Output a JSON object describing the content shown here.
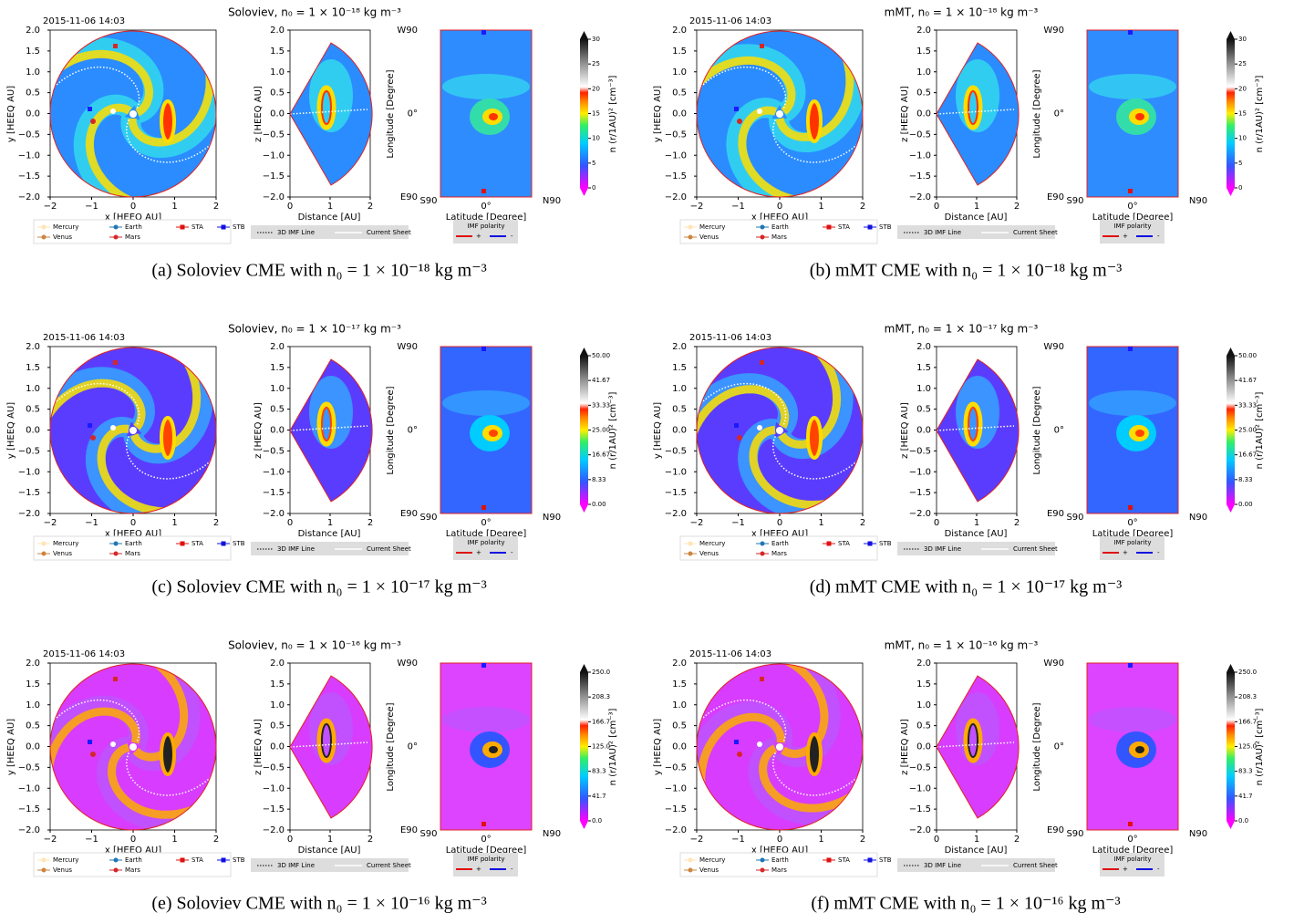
{
  "common": {
    "date": "2015-11-06 14:03",
    "xy_xticks": [
      "−2",
      "−1",
      "0",
      "1",
      "2"
    ],
    "xy_yticks": [
      "2.0",
      "1.5",
      "1.0",
      "0.5",
      "0.0",
      "−0.5",
      "−1.0",
      "−1.5",
      "−2.0"
    ],
    "xy_xlabel": "x [HEEQ AU]",
    "xy_ylabel": "y [HEEQ AU]",
    "xz_xticks": [
      "0",
      "1",
      "2"
    ],
    "xz_xlabel": "Distance [AU]",
    "xz_ylabel": "z [HEEQ AU]",
    "map_lon_ticks": [
      "W90",
      "0°",
      "E90"
    ],
    "map_lat_ticks": [
      "S90",
      "0°",
      "N90"
    ],
    "map_xlabel": "Latitude [Degree]",
    "map_ylabel": "Longitude [Degree]",
    "colorbar_label": "n (r/1AU)² [cm⁻³]",
    "bodies": [
      "Mercury",
      "Venus",
      "Earth",
      "Mars",
      "STA",
      "STB"
    ],
    "lines_legend": [
      "3D IMF Line",
      "Current Sheet"
    ],
    "polarity_title": "IMF polarity",
    "polarity_labels": [
      "+",
      "-"
    ]
  },
  "panels": [
    {
      "title": "Soloviev,  n₀ = 1 × 10⁻¹⁸ kg m⁻³",
      "caption": "(a) Soloviev CME with n₀ = 1 × 10⁻¹⁸ kg m⁻³",
      "colorbar_ticks": [
        "0",
        "5",
        "10",
        "15",
        "20",
        "25",
        "30"
      ]
    },
    {
      "title": "mMT,  n₀ = 1 × 10⁻¹⁸ kg m⁻³",
      "caption": "(b) mMT CME with n₀ = 1 × 10⁻¹⁸ kg m⁻³",
      "colorbar_ticks": [
        "0",
        "5",
        "10",
        "15",
        "20",
        "25",
        "30"
      ]
    },
    {
      "title": "Soloviev,  n₀ = 1 × 10⁻¹⁷ kg m⁻³",
      "caption": "(c) Soloviev CME with n₀ = 1 × 10⁻¹⁷ kg m⁻³",
      "colorbar_ticks": [
        "0.00",
        "8.33",
        "16.67",
        "25.00",
        "33.33",
        "41.67",
        "50.00"
      ]
    },
    {
      "title": "mMT,  n₀ = 1 × 10⁻¹⁷ kg m⁻³",
      "caption": "(d) mMT CME with n₀ = 1 × 10⁻¹⁷ kg m⁻³",
      "colorbar_ticks": [
        "0.00",
        "8.33",
        "16.67",
        "25.00",
        "33.33",
        "41.67",
        "50.00"
      ]
    },
    {
      "title": "Soloviev,  n₀ = 1 × 10⁻¹⁶ kg m⁻³",
      "caption": "(e) Soloviev CME with n₀ = 1 × 10⁻¹⁶ kg m⁻³",
      "colorbar_ticks": [
        "0.0",
        "41.7",
        "83.3",
        "125.0",
        "166.7",
        "208.3",
        "250.0"
      ]
    },
    {
      "title": "mMT,  n₀ = 1 × 10⁻¹⁶ kg m⁻³",
      "caption": "(f) mMT CME with n₀ = 1 × 10⁻¹⁶ kg m⁻³",
      "colorbar_ticks": [
        "0.0",
        "41.7",
        "83.3",
        "125.0",
        "166.7",
        "208.3",
        "250.0"
      ]
    }
  ]
}
